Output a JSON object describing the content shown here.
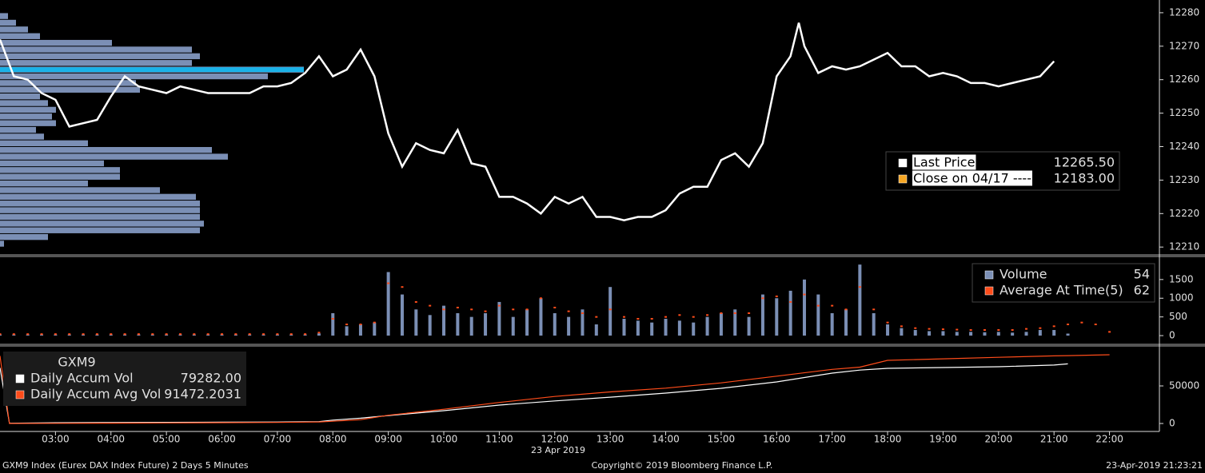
{
  "chart_data": [
    {
      "type": "line",
      "xlim": [
        2.0,
        22.9
      ],
      "ylim": [
        12207.9,
        12283.8
      ],
      "yticks": [
        12210,
        12220,
        12230,
        12240,
        12250,
        12260,
        12270,
        12280
      ],
      "x": [
        2,
        2.25,
        2.5,
        2.75,
        3,
        3.25,
        3.5,
        3.75,
        4,
        4.25,
        4.5,
        4.75,
        5,
        5.25,
        5.5,
        5.75,
        6,
        6.25,
        6.5,
        6.75,
        7,
        7.25,
        7.5,
        7.75,
        8,
        8.25,
        8.5,
        8.75,
        9,
        9.25,
        9.5,
        9.75,
        10,
        10.25,
        10.5,
        10.75,
        11,
        11.25,
        11.5,
        11.75,
        12,
        12.25,
        12.5,
        12.75,
        13,
        13.25,
        13.5,
        13.75,
        14,
        14.25,
        14.5,
        14.75,
        15,
        15.25,
        15.5,
        15.75,
        16,
        16.25,
        16.4,
        16.5,
        16.75,
        17,
        17.25,
        17.5,
        17.75,
        18,
        18.25,
        18.5,
        18.75,
        19,
        19.25,
        19.5,
        19.75,
        20,
        20.25,
        20.5,
        20.75,
        21
      ],
      "series": [
        {
          "name": "Last Price",
          "color": "#ffffff",
          "legend_value": 12265.5,
          "legend_label": "12265.50",
          "values": [
            12272,
            12261,
            12260,
            12256,
            12254,
            12246,
            12247,
            12248,
            12255,
            12261,
            12258,
            12257,
            12256,
            12258,
            12257,
            12256,
            12256,
            12256,
            12256,
            12258,
            12258,
            12259,
            12262,
            12267,
            12261,
            12263,
            12269,
            12261,
            12244,
            12234,
            12241,
            12239,
            12238,
            12245,
            12235,
            12234,
            12225,
            12225,
            12223,
            12220,
            12225,
            12223,
            12225,
            12219,
            12219,
            12218,
            12219,
            12219,
            12221,
            12226,
            12228,
            12228,
            12236,
            12238,
            12234,
            12241,
            12261,
            12267,
            12277,
            12270,
            12262,
            12264,
            12263,
            12264,
            12266,
            12268,
            12264,
            12264,
            12261,
            12262,
            12261,
            12259,
            12259,
            12258,
            12259,
            12260,
            12261,
            12265.5
          ]
        },
        {
          "name": "Close on 04/17 ----",
          "color": "#f5a623",
          "legend_value": 12183,
          "legend_label": "12183.00"
        }
      ],
      "volume_profile": {
        "color": "#7b8fb5",
        "highlight_color": "#1ab2e8",
        "highlight_level": 12263,
        "levels": [
          12279,
          12277,
          12275,
          12273,
          12271,
          12269,
          12267,
          12265,
          12263,
          12261,
          12259,
          12257,
          12255,
          12253,
          12251,
          12249,
          12247,
          12245,
          12243,
          12241,
          12239,
          12237,
          12235,
          12233,
          12231,
          12229,
          12227,
          12225,
          12223,
          12221,
          12219,
          12217,
          12215,
          12213,
          12211
        ],
        "values": [
          10,
          20,
          35,
          50,
          140,
          240,
          250,
          240,
          380,
          335,
          170,
          175,
          50,
          60,
          70,
          65,
          70,
          45,
          55,
          110,
          265,
          285,
          130,
          150,
          150,
          110,
          200,
          245,
          250,
          250,
          250,
          255,
          250,
          60,
          5
        ]
      }
    },
    {
      "type": "bar",
      "xlim": [
        2.0,
        22.9
      ],
      "ylim": [
        -170,
        1860
      ],
      "yticks": [
        0,
        500,
        1000,
        1500
      ],
      "x": [
        2,
        2.25,
        2.5,
        2.75,
        3,
        3.25,
        3.5,
        3.75,
        4,
        4.25,
        4.5,
        4.75,
        5,
        5.25,
        5.5,
        5.75,
        6,
        6.25,
        6.5,
        6.75,
        7,
        7.25,
        7.5,
        7.75,
        8,
        8.25,
        8.5,
        8.75,
        9,
        9.25,
        9.5,
        9.75,
        10,
        10.25,
        10.5,
        10.75,
        11,
        11.25,
        11.5,
        11.75,
        12,
        12.25,
        12.5,
        12.75,
        13,
        13.25,
        13.5,
        13.75,
        14,
        14.25,
        14.5,
        14.75,
        15,
        15.25,
        15.5,
        15.75,
        16,
        16.25,
        16.5,
        16.75,
        17,
        17.25,
        17.5,
        17.75,
        18,
        18.25,
        18.5,
        18.75,
        19,
        19.25,
        19.5,
        19.75,
        20,
        20.25,
        20.5,
        20.75,
        21,
        21.25,
        21.5,
        21.75,
        22
      ],
      "series": [
        {
          "name": "Volume",
          "type": "bar",
          "color": "#7b8fb5",
          "legend_value": 54,
          "values": [
            30,
            30,
            30,
            30,
            30,
            30,
            30,
            30,
            30,
            30,
            30,
            30,
            30,
            30,
            30,
            30,
            30,
            30,
            30,
            30,
            30,
            30,
            30,
            60,
            600,
            250,
            300,
            350,
            1700,
            1100,
            700,
            550,
            800,
            600,
            500,
            600,
            900,
            500,
            700,
            1000,
            600,
            500,
            700,
            300,
            1300,
            450,
            400,
            350,
            450,
            400,
            350,
            500,
            600,
            700,
            500,
            1100,
            1000,
            1200,
            1500,
            1100,
            600,
            700,
            1900,
            600,
            300,
            200,
            150,
            120,
            120,
            100,
            100,
            90,
            100,
            80,
            100,
            150,
            150,
            54,
            null,
            null,
            null
          ]
        },
        {
          "name": "Average At Time(5)",
          "type": "dots",
          "color": "#ff4c1a",
          "legend_value": 62,
          "values": [
            40,
            40,
            40,
            40,
            40,
            40,
            40,
            40,
            40,
            40,
            40,
            40,
            40,
            40,
            40,
            40,
            40,
            40,
            40,
            40,
            40,
            40,
            40,
            80,
            450,
            300,
            300,
            350,
            1400,
            1300,
            900,
            800,
            700,
            750,
            700,
            650,
            800,
            700,
            700,
            1000,
            750,
            650,
            600,
            500,
            700,
            500,
            450,
            450,
            500,
            550,
            500,
            550,
            600,
            600,
            600,
            1000,
            1050,
            900,
            1100,
            800,
            800,
            700,
            1300,
            700,
            350,
            250,
            200,
            180,
            170,
            160,
            150,
            150,
            150,
            150,
            180,
            200,
            250,
            300,
            350,
            300,
            100
          ]
        }
      ]
    },
    {
      "type": "line",
      "xlim": [
        2.0,
        22.9
      ],
      "ylim": [
        -10600,
        95700
      ],
      "yticks": [
        0,
        50000
      ],
      "xticks": [
        {
          "value": 3,
          "label": "03:00"
        },
        {
          "value": 4,
          "label": "04:00"
        },
        {
          "value": 5,
          "label": "05:00"
        },
        {
          "value": 6,
          "label": "06:00"
        },
        {
          "value": 7,
          "label": "07:00"
        },
        {
          "value": 8,
          "label": "08:00"
        },
        {
          "value": 9,
          "label": "09:00"
        },
        {
          "value": 10,
          "label": "10:00"
        },
        {
          "value": 11,
          "label": "11:00"
        },
        {
          "value": 12,
          "label": "12:00"
        },
        {
          "value": 13,
          "label": "13:00"
        },
        {
          "value": 14,
          "label": "14:00"
        },
        {
          "value": 15,
          "label": "15:00"
        },
        {
          "value": 16,
          "label": "16:00"
        },
        {
          "value": 17,
          "label": "17:00"
        },
        {
          "value": 18,
          "label": "18:00"
        },
        {
          "value": 19,
          "label": "19:00"
        },
        {
          "value": 20,
          "label": "20:00"
        },
        {
          "value": 21,
          "label": "21:00"
        },
        {
          "value": 22,
          "label": "22:00"
        }
      ],
      "date_label": "23 Apr 2019",
      "legend_title": "GXM9",
      "x": [
        2,
        2.17,
        3,
        4,
        5,
        6,
        7,
        7.75,
        8,
        8.5,
        9,
        10,
        11,
        12,
        13,
        14,
        15,
        16,
        17,
        17.5,
        18,
        19,
        20,
        21,
        21.25,
        22
      ],
      "series": [
        {
          "name": "Daily Accum Vol",
          "color": "#ffffff",
          "legend_value": 79282,
          "legend_label": "79282.00",
          "values": [
            74000,
            300,
            1000,
            1300,
            1500,
            1700,
            1900,
            2500,
            4500,
            7000,
            10600,
            17000,
            24500,
            30000,
            35000,
            40400,
            46800,
            55300,
            67000,
            71000,
            73400,
            74400,
            75500,
            77700,
            79282,
            null
          ]
        },
        {
          "name": "Daily Accum Avg Vol",
          "color": "#ff4c1a",
          "legend_value": 91472.2031,
          "values": [
            90000,
            0,
            200,
            500,
            800,
            1100,
            1400,
            2000,
            3000,
            5000,
            11000,
            19000,
            28000,
            36000,
            42000,
            47000,
            54000,
            63000,
            72000,
            75000,
            84000,
            86000,
            88000,
            90000,
            90300,
            91472.2031
          ]
        }
      ]
    }
  ],
  "footer": {
    "left": "GXM9 Index (Eurex DAX Index Future) 2 Days 5 Minutes",
    "center": "Copyright© 2019 Bloomberg Finance L.P.",
    "right": "23-Apr-2019 21:23:21"
  }
}
